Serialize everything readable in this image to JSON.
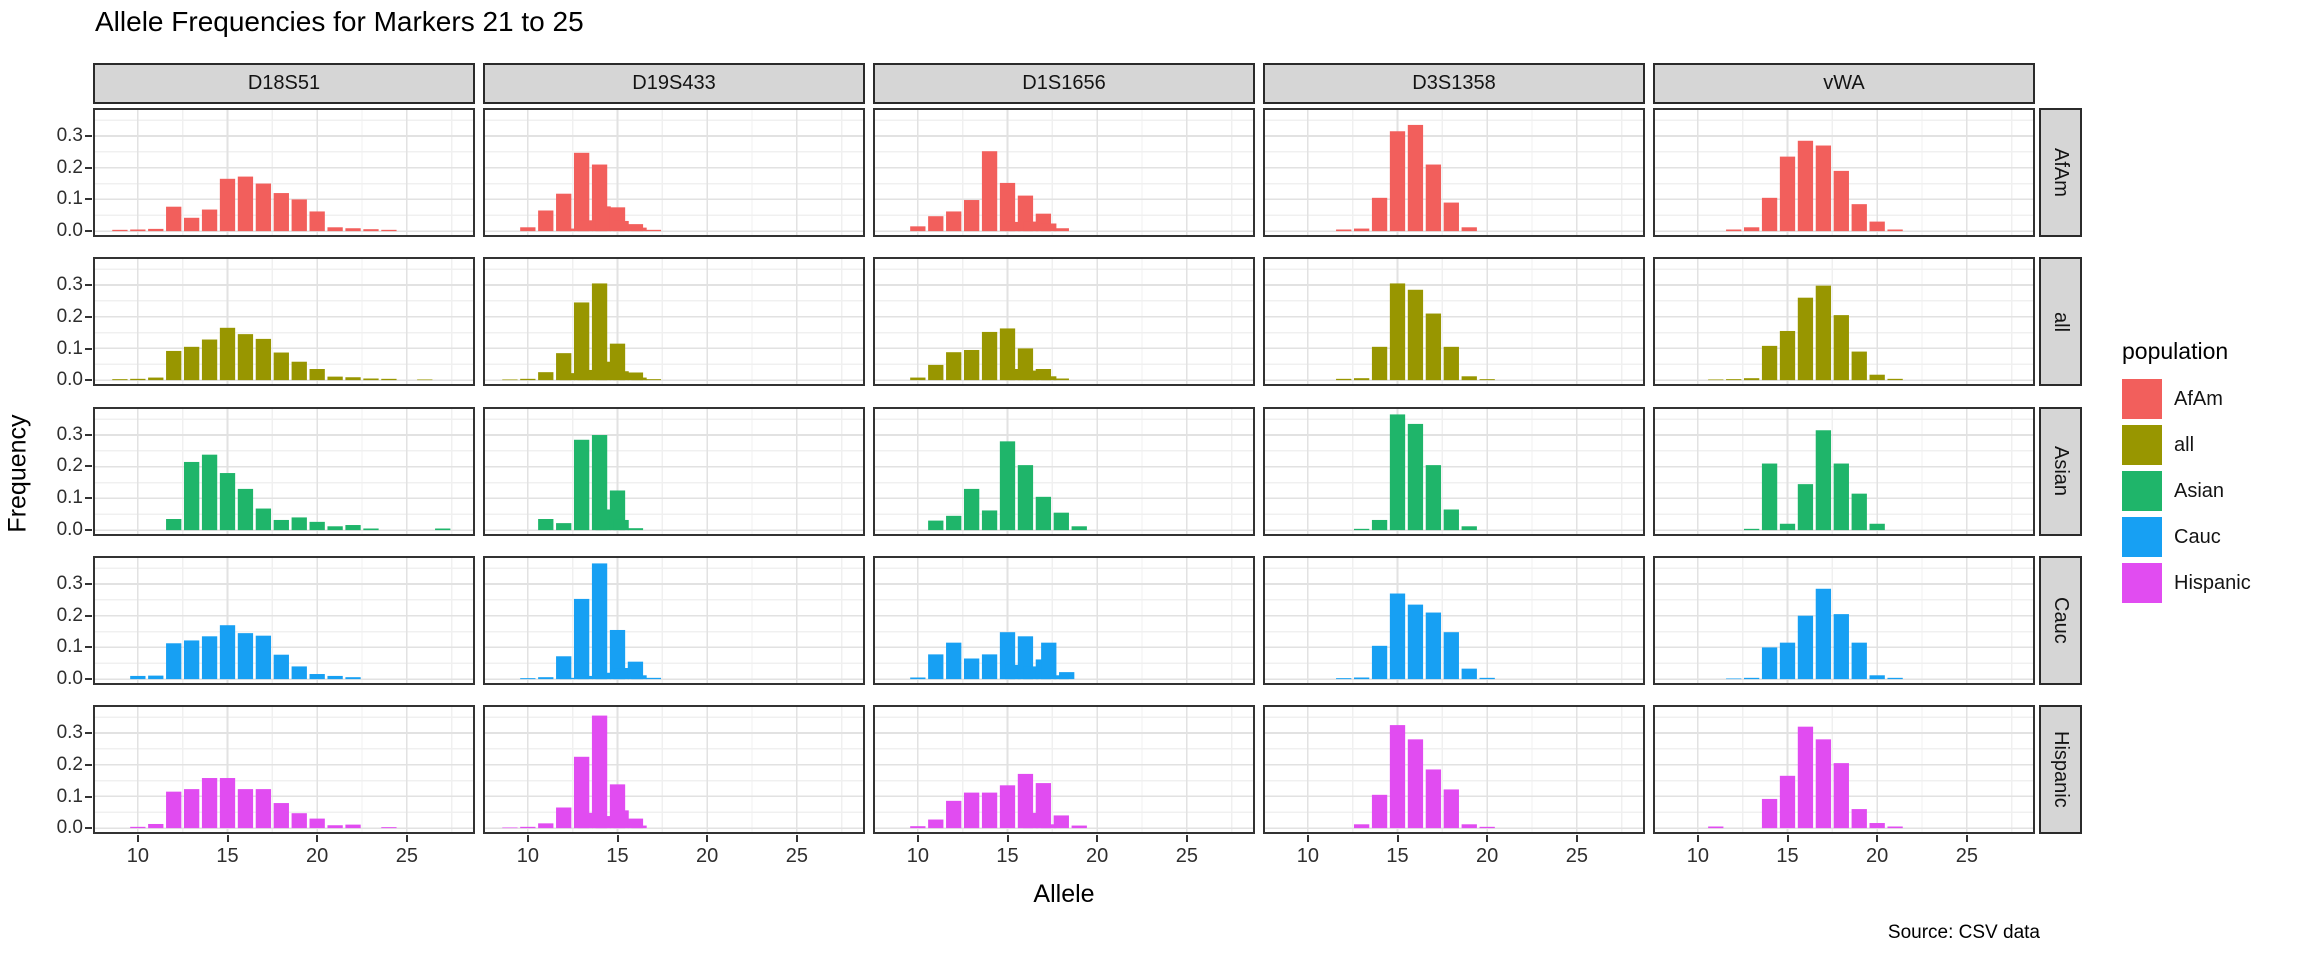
{
  "title": "Allele Frequencies for Markers 21 to 25",
  "x_axis_title": "Allele",
  "y_axis_title": "Frequency",
  "source_note": "Source: CSV data",
  "x_ticks": [
    "10",
    "15",
    "20",
    "25"
  ],
  "y_ticks": [
    "0.0",
    "0.1",
    "0.2",
    "0.3"
  ],
  "legend": {
    "title": "population",
    "entries": [
      {
        "label": "AfAm",
        "color": "#f25f5c"
      },
      {
        "label": "all",
        "color": "#989600"
      },
      {
        "label": "Asian",
        "color": "#1fb56a"
      },
      {
        "label": "Cauc",
        "color": "#17a0f3"
      },
      {
        "label": "Hispanic",
        "color": "#e14cf1"
      }
    ]
  },
  "chart_data": {
    "type": "bar",
    "title": "Allele Frequencies for Markers 21 to 25",
    "xlabel": "Allele",
    "ylabel": "Frequency",
    "facet_columns": [
      "D18S51",
      "D19S433",
      "D1S1656",
      "D3S1358",
      "vWA"
    ],
    "facet_rows": [
      "AfAm",
      "all",
      "Asian",
      "Cauc",
      "Hispanic"
    ],
    "x_tick_values": [
      10,
      15,
      20,
      25
    ],
    "y_tick_values": [
      0.0,
      0.1,
      0.2,
      0.3
    ],
    "xlim": [
      7.5,
      28.8
    ],
    "ylim": [
      -0.019,
      0.388
    ],
    "grid": "major and minor, light gray on white",
    "legend_position": "right",
    "series": {
      "D18S51": {
        "AfAm": [
          [
            9,
            0.004
          ],
          [
            10,
            0.005
          ],
          [
            11,
            0.007
          ],
          [
            12,
            0.077
          ],
          [
            13,
            0.042
          ],
          [
            14,
            0.068
          ],
          [
            15,
            0.165
          ],
          [
            16,
            0.172
          ],
          [
            17,
            0.15
          ],
          [
            18,
            0.12
          ],
          [
            19,
            0.1
          ],
          [
            20,
            0.062
          ],
          [
            21,
            0.012
          ],
          [
            22,
            0.009
          ],
          [
            23,
            0.006
          ],
          [
            24,
            0.004
          ]
        ],
        "all": [
          [
            9,
            0.003
          ],
          [
            10,
            0.004
          ],
          [
            11,
            0.008
          ],
          [
            12,
            0.092
          ],
          [
            13,
            0.105
          ],
          [
            14,
            0.128
          ],
          [
            15,
            0.165
          ],
          [
            16,
            0.145
          ],
          [
            17,
            0.13
          ],
          [
            18,
            0.087
          ],
          [
            19,
            0.058
          ],
          [
            20,
            0.035
          ],
          [
            21,
            0.011
          ],
          [
            22,
            0.009
          ],
          [
            23,
            0.005
          ],
          [
            24,
            0.004
          ],
          [
            26,
            0.002
          ]
        ],
        "Asian": [
          [
            12,
            0.035
          ],
          [
            13,
            0.215
          ],
          [
            14,
            0.238
          ],
          [
            15,
            0.18
          ],
          [
            16,
            0.13
          ],
          [
            17,
            0.068
          ],
          [
            18,
            0.032
          ],
          [
            19,
            0.04
          ],
          [
            20,
            0.026
          ],
          [
            21,
            0.012
          ],
          [
            22,
            0.016
          ],
          [
            23,
            0.005
          ],
          [
            27,
            0.005
          ]
        ],
        "Cauc": [
          [
            10,
            0.01
          ],
          [
            11,
            0.011
          ],
          [
            12,
            0.113
          ],
          [
            13,
            0.122
          ],
          [
            14,
            0.135
          ],
          [
            15,
            0.17
          ],
          [
            16,
            0.145
          ],
          [
            17,
            0.137
          ],
          [
            18,
            0.077
          ],
          [
            19,
            0.04
          ],
          [
            20,
            0.016
          ],
          [
            21,
            0.01
          ],
          [
            22,
            0.006
          ]
        ],
        "Hispanic": [
          [
            10,
            0.004
          ],
          [
            11,
            0.013
          ],
          [
            12,
            0.115
          ],
          [
            13,
            0.123
          ],
          [
            14,
            0.158
          ],
          [
            15,
            0.158
          ],
          [
            16,
            0.123
          ],
          [
            17,
            0.123
          ],
          [
            18,
            0.079
          ],
          [
            19,
            0.047
          ],
          [
            20,
            0.03
          ],
          [
            21,
            0.009
          ],
          [
            22,
            0.011
          ],
          [
            24,
            0.003
          ]
        ]
      },
      "D19S433": {
        "AfAm": [
          [
            10,
            0.012
          ],
          [
            11,
            0.065
          ],
          [
            12,
            0.118
          ],
          [
            12.2,
            0.008
          ],
          [
            13,
            0.247
          ],
          [
            13.2,
            0.034
          ],
          [
            14,
            0.21
          ],
          [
            14.2,
            0.078
          ],
          [
            15,
            0.075
          ],
          [
            15.2,
            0.032
          ],
          [
            16,
            0.022
          ],
          [
            16.2,
            0.011
          ],
          [
            17,
            0.004
          ]
        ],
        "all": [
          [
            9,
            0.002
          ],
          [
            10,
            0.004
          ],
          [
            11,
            0.025
          ],
          [
            12,
            0.085
          ],
          [
            12.2,
            0.022
          ],
          [
            13,
            0.245
          ],
          [
            13.2,
            0.032
          ],
          [
            14,
            0.305
          ],
          [
            14.2,
            0.058
          ],
          [
            15,
            0.115
          ],
          [
            15.2,
            0.028
          ],
          [
            16,
            0.024
          ],
          [
            16.2,
            0.008
          ],
          [
            17,
            0.003
          ]
        ],
        "Asian": [
          [
            11,
            0.035
          ],
          [
            12,
            0.022
          ],
          [
            13,
            0.285
          ],
          [
            14,
            0.3
          ],
          [
            14.2,
            0.065
          ],
          [
            15,
            0.125
          ],
          [
            15.2,
            0.032
          ],
          [
            16,
            0.006
          ]
        ],
        "Cauc": [
          [
            10,
            0.003
          ],
          [
            11,
            0.006
          ],
          [
            12,
            0.072
          ],
          [
            12.2,
            0.004
          ],
          [
            13,
            0.253
          ],
          [
            13.2,
            0.01
          ],
          [
            14,
            0.365
          ],
          [
            14.2,
            0.02
          ],
          [
            15,
            0.155
          ],
          [
            15.2,
            0.035
          ],
          [
            16,
            0.055
          ],
          [
            16.2,
            0.012
          ],
          [
            17,
            0.004
          ]
        ],
        "Hispanic": [
          [
            9,
            0.002
          ],
          [
            10,
            0.004
          ],
          [
            11,
            0.015
          ],
          [
            12,
            0.065
          ],
          [
            13,
            0.225
          ],
          [
            13.2,
            0.048
          ],
          [
            14,
            0.355
          ],
          [
            14.2,
            0.038
          ],
          [
            15,
            0.138
          ],
          [
            15.2,
            0.056
          ],
          [
            16,
            0.03
          ],
          [
            16.2,
            0.008
          ]
        ]
      },
      "D1S1656": {
        "AfAm": [
          [
            10,
            0.015
          ],
          [
            11,
            0.047
          ],
          [
            12,
            0.062
          ],
          [
            13,
            0.098
          ],
          [
            14,
            0.252
          ],
          [
            15,
            0.152
          ],
          [
            15.3,
            0.029
          ],
          [
            16,
            0.112
          ],
          [
            16.3,
            0.03
          ],
          [
            17,
            0.055
          ],
          [
            17.3,
            0.024
          ],
          [
            18,
            0.009
          ]
        ],
        "all": [
          [
            10,
            0.008
          ],
          [
            11,
            0.048
          ],
          [
            12,
            0.088
          ],
          [
            13,
            0.095
          ],
          [
            14,
            0.152
          ],
          [
            15,
            0.163
          ],
          [
            15.3,
            0.035
          ],
          [
            16,
            0.1
          ],
          [
            16.3,
            0.03
          ],
          [
            17,
            0.035
          ],
          [
            17.3,
            0.012
          ],
          [
            18,
            0.005
          ]
        ],
        "Asian": [
          [
            11,
            0.03
          ],
          [
            12,
            0.045
          ],
          [
            13,
            0.13
          ],
          [
            14,
            0.062
          ],
          [
            15,
            0.28
          ],
          [
            16,
            0.205
          ],
          [
            17,
            0.105
          ],
          [
            18,
            0.055
          ],
          [
            19,
            0.012
          ]
        ],
        "Cauc": [
          [
            10,
            0.005
          ],
          [
            11,
            0.078
          ],
          [
            12,
            0.115
          ],
          [
            13,
            0.065
          ],
          [
            14,
            0.078
          ],
          [
            15,
            0.148
          ],
          [
            15.3,
            0.045
          ],
          [
            16,
            0.135
          ],
          [
            16.3,
            0.04
          ],
          [
            17,
            0.062
          ],
          [
            17.3,
            0.115
          ],
          [
            18,
            0.012
          ],
          [
            18.3,
            0.022
          ]
        ],
        "Hispanic": [
          [
            10,
            0.006
          ],
          [
            11,
            0.027
          ],
          [
            12,
            0.086
          ],
          [
            13,
            0.112
          ],
          [
            14,
            0.112
          ],
          [
            15,
            0.135
          ],
          [
            16,
            0.171
          ],
          [
            16.3,
            0.048
          ],
          [
            17,
            0.142
          ],
          [
            17.3,
            0.012
          ],
          [
            18,
            0.04
          ],
          [
            19,
            0.008
          ]
        ]
      },
      "D3S1358": {
        "AfAm": [
          [
            12,
            0.005
          ],
          [
            13,
            0.008
          ],
          [
            14,
            0.105
          ],
          [
            15,
            0.315
          ],
          [
            16,
            0.335
          ],
          [
            17,
            0.21
          ],
          [
            18,
            0.09
          ],
          [
            19,
            0.012
          ]
        ],
        "all": [
          [
            12,
            0.004
          ],
          [
            13,
            0.006
          ],
          [
            14,
            0.105
          ],
          [
            15,
            0.305
          ],
          [
            16,
            0.285
          ],
          [
            17,
            0.21
          ],
          [
            18,
            0.105
          ],
          [
            19,
            0.012
          ],
          [
            20,
            0.003
          ]
        ],
        "Asian": [
          [
            13,
            0.004
          ],
          [
            14,
            0.032
          ],
          [
            15,
            0.365
          ],
          [
            16,
            0.335
          ],
          [
            17,
            0.205
          ],
          [
            18,
            0.065
          ],
          [
            19,
            0.012
          ]
        ],
        "Cauc": [
          [
            12,
            0.003
          ],
          [
            13,
            0.005
          ],
          [
            14,
            0.105
          ],
          [
            15,
            0.27
          ],
          [
            16,
            0.235
          ],
          [
            17,
            0.21
          ],
          [
            18,
            0.148
          ],
          [
            19,
            0.033
          ],
          [
            20,
            0.004
          ]
        ],
        "Hispanic": [
          [
            13,
            0.012
          ],
          [
            14,
            0.105
          ],
          [
            15,
            0.325
          ],
          [
            16,
            0.28
          ],
          [
            17,
            0.185
          ],
          [
            18,
            0.122
          ],
          [
            19,
            0.012
          ],
          [
            20,
            0.004
          ]
        ]
      },
      "vWA": {
        "AfAm": [
          [
            12,
            0.005
          ],
          [
            13,
            0.012
          ],
          [
            14,
            0.105
          ],
          [
            15,
            0.235
          ],
          [
            16,
            0.285
          ],
          [
            17,
            0.27
          ],
          [
            18,
            0.19
          ],
          [
            19,
            0.085
          ],
          [
            20,
            0.03
          ],
          [
            21,
            0.005
          ]
        ],
        "all": [
          [
            11,
            0.002
          ],
          [
            12,
            0.003
          ],
          [
            13,
            0.006
          ],
          [
            14,
            0.108
          ],
          [
            15,
            0.155
          ],
          [
            16,
            0.26
          ],
          [
            17,
            0.298
          ],
          [
            18,
            0.205
          ],
          [
            19,
            0.09
          ],
          [
            20,
            0.017
          ],
          [
            21,
            0.004
          ]
        ],
        "Asian": [
          [
            13,
            0.004
          ],
          [
            14,
            0.21
          ],
          [
            15,
            0.02
          ],
          [
            16,
            0.145
          ],
          [
            17,
            0.315
          ],
          [
            18,
            0.21
          ],
          [
            19,
            0.115
          ],
          [
            20,
            0.02
          ]
        ],
        "Cauc": [
          [
            12,
            0.002
          ],
          [
            13,
            0.004
          ],
          [
            14,
            0.1
          ],
          [
            15,
            0.115
          ],
          [
            16,
            0.2
          ],
          [
            17,
            0.285
          ],
          [
            18,
            0.205
          ],
          [
            19,
            0.115
          ],
          [
            20,
            0.012
          ],
          [
            21,
            0.004
          ]
        ],
        "Hispanic": [
          [
            11,
            0.005
          ],
          [
            14,
            0.092
          ],
          [
            15,
            0.165
          ],
          [
            16,
            0.32
          ],
          [
            17,
            0.28
          ],
          [
            18,
            0.205
          ],
          [
            19,
            0.06
          ],
          [
            20,
            0.016
          ],
          [
            21,
            0.005
          ]
        ]
      }
    }
  }
}
